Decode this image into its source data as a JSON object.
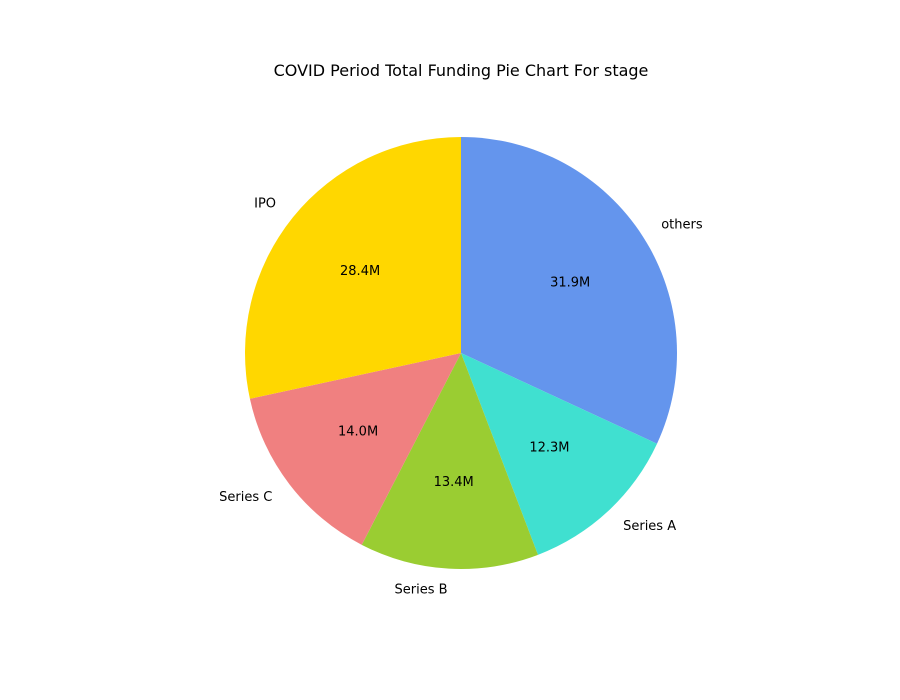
{
  "chart_data": {
    "type": "pie",
    "title": "COVID Period Total Funding Pie Chart For stage",
    "start_angle_deg": 90,
    "direction": "clockwise",
    "slices": [
      {
        "label": "others",
        "value": 31.9,
        "display": "31.9M",
        "color": "#6495ED"
      },
      {
        "label": "Series A",
        "value": 12.3,
        "display": "12.3M",
        "color": "#40E0D0"
      },
      {
        "label": "Series B",
        "value": 13.4,
        "display": "13.4M",
        "color": "#9ACD32"
      },
      {
        "label": "Series C",
        "value": 14.0,
        "display": "14.0M",
        "color": "#F08080"
      },
      {
        "label": "IPO",
        "value": 28.4,
        "display": "28.4M",
        "color": "#FFD700"
      }
    ]
  }
}
